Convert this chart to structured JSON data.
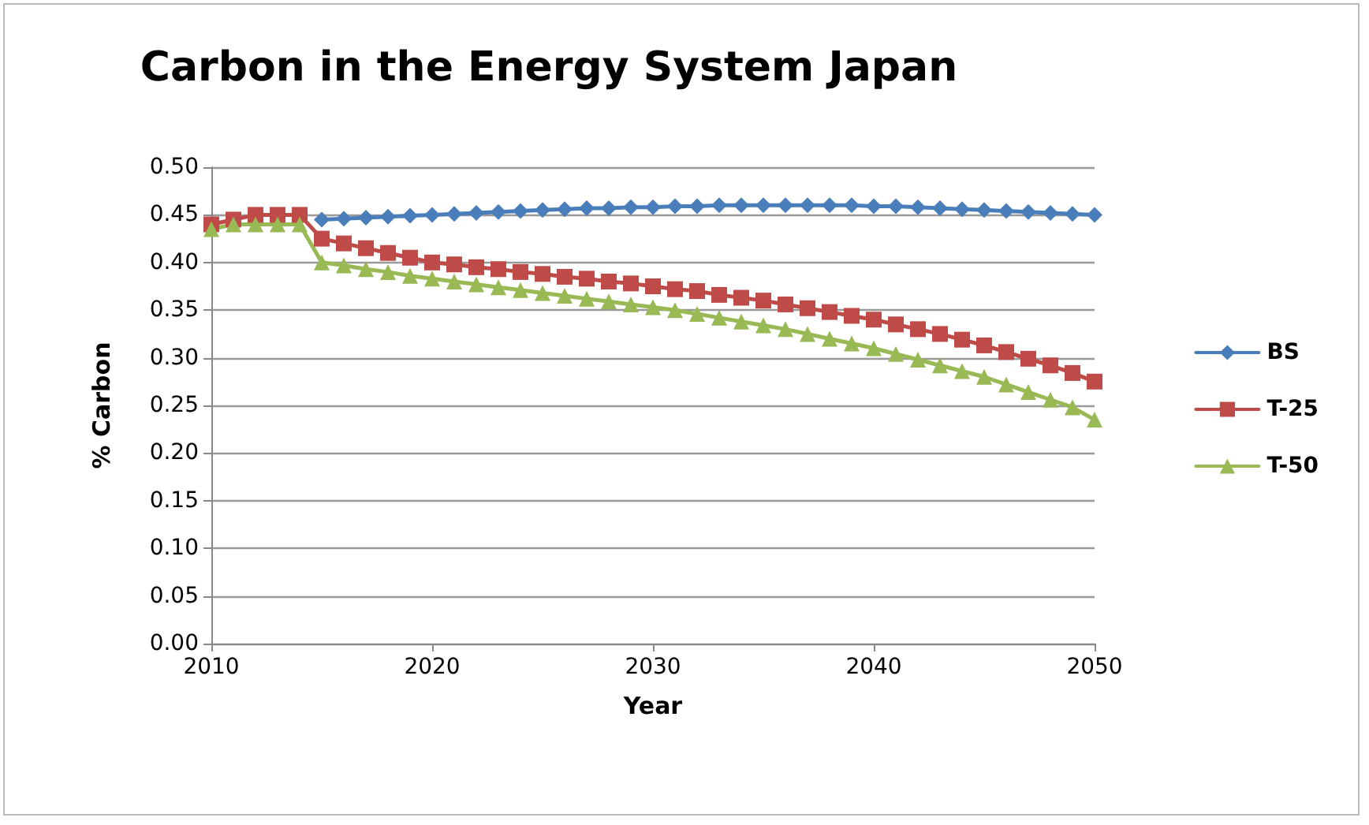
{
  "chart_data": {
    "type": "line",
    "title": "Carbon in the Energy System Japan",
    "xlabel": "Year",
    "ylabel": "% Carbon",
    "x": [
      2010,
      2011,
      2012,
      2013,
      2014,
      2015,
      2016,
      2017,
      2018,
      2019,
      2020,
      2021,
      2022,
      2023,
      2024,
      2025,
      2026,
      2027,
      2028,
      2029,
      2030,
      2031,
      2032,
      2033,
      2034,
      2035,
      2036,
      2037,
      2038,
      2039,
      2040,
      2041,
      2042,
      2043,
      2044,
      2045,
      2046,
      2047,
      2048,
      2049,
      2050
    ],
    "series": [
      {
        "name": "BS",
        "color": "#4a7ebb",
        "marker": "diamond",
        "values": [
          null,
          null,
          null,
          null,
          null,
          0.445,
          0.446,
          0.447,
          0.448,
          0.449,
          0.45,
          0.451,
          0.452,
          0.453,
          0.454,
          0.455,
          0.456,
          0.457,
          0.457,
          0.458,
          0.458,
          0.459,
          0.459,
          0.46,
          0.46,
          0.46,
          0.46,
          0.46,
          0.46,
          0.46,
          0.459,
          0.459,
          0.458,
          0.457,
          0.456,
          0.455,
          0.454,
          0.453,
          0.452,
          0.451,
          0.45
        ]
      },
      {
        "name": "T-25",
        "color": "#be4b48",
        "marker": "square",
        "values": [
          0.44,
          0.445,
          0.45,
          0.45,
          0.45,
          0.425,
          0.42,
          0.415,
          0.41,
          0.405,
          0.4,
          0.398,
          0.395,
          0.393,
          0.39,
          0.388,
          0.385,
          0.383,
          0.38,
          0.378,
          0.375,
          0.372,
          0.37,
          0.366,
          0.363,
          0.36,
          0.356,
          0.352,
          0.348,
          0.344,
          0.34,
          0.335,
          0.33,
          0.325,
          0.319,
          0.313,
          0.306,
          0.299,
          0.292,
          0.284,
          0.275
        ]
      },
      {
        "name": "T-50",
        "color": "#98b954",
        "marker": "triangle",
        "values": [
          0.435,
          0.44,
          0.44,
          0.44,
          0.44,
          0.4,
          0.397,
          0.393,
          0.39,
          0.386,
          0.383,
          0.38,
          0.377,
          0.374,
          0.371,
          0.368,
          0.365,
          0.362,
          0.359,
          0.356,
          0.353,
          0.35,
          0.346,
          0.342,
          0.338,
          0.334,
          0.33,
          0.325,
          0.32,
          0.315,
          0.31,
          0.304,
          0.298,
          0.292,
          0.286,
          0.28,
          0.272,
          0.264,
          0.256,
          0.248,
          0.235
        ]
      }
    ],
    "xlim": [
      2010,
      2050
    ],
    "xticks": [
      2010,
      2020,
      2030,
      2040,
      2050
    ],
    "ylim": [
      0,
      0.5
    ],
    "yticks": [
      {
        "value": 0,
        "label": "0.00"
      },
      0.05,
      {
        "value": 0.1,
        "label": "0.10"
      },
      0.15,
      {
        "value": 0.2,
        "label": "0.20"
      },
      0.25,
      {
        "value": 0.3,
        "label": "0.30"
      },
      0.35,
      {
        "value": 0.4,
        "label": "0.40"
      },
      0.45,
      {
        "value": 0.5,
        "label": "0.50"
      }
    ],
    "grid": "y",
    "legend": "right",
    "line_style": "solid"
  }
}
